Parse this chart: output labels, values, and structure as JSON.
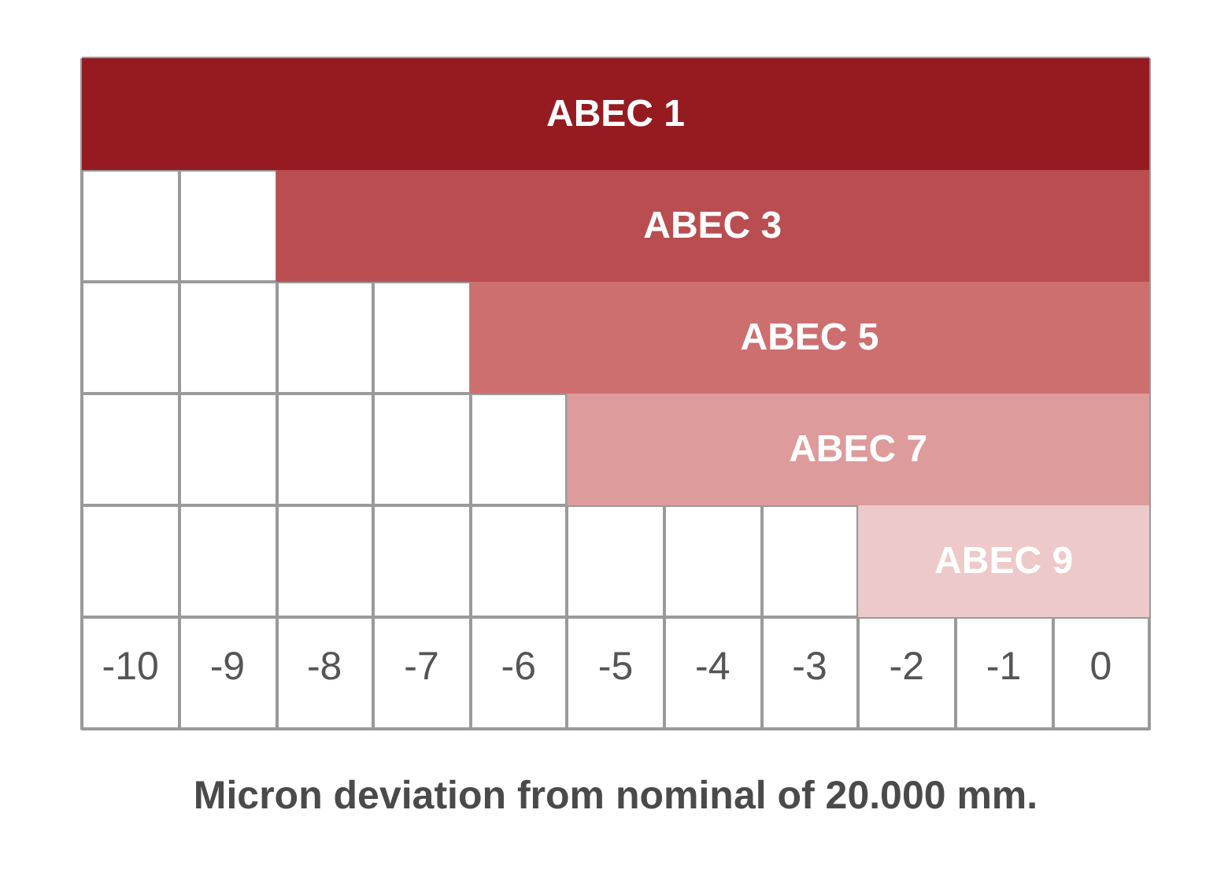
{
  "chart_data": {
    "type": "bar",
    "orientation": "horizontal",
    "categories": [
      "ABEC 1",
      "ABEC 3",
      "ABEC 5",
      "ABEC 7",
      "ABEC 9"
    ],
    "base": [
      -10.5,
      -8.5,
      -6.5,
      -5.5,
      -2.5
    ],
    "values": [
      11,
      9,
      7,
      6,
      3
    ],
    "colors": [
      "#951b20",
      "#b94d50",
      "#cd6e6f",
      "#dd9b9c",
      "#edc9c9"
    ],
    "xlim": [
      -10.5,
      0.5
    ],
    "xticks": [
      {
        "value": -10.5,
        "label": null
      },
      -10,
      {
        "value": -9.5,
        "label": null
      },
      -9,
      {
        "value": -8.5,
        "label": null
      },
      -8,
      {
        "value": -7.5,
        "label": null
      },
      -7,
      {
        "value": -6.5,
        "label": null
      },
      -6,
      {
        "value": -5.5,
        "label": null
      },
      -5,
      {
        "value": -4.5,
        "label": null
      },
      -4,
      {
        "value": -3.5,
        "label": null
      },
      -3,
      {
        "value": -2.5,
        "label": null
      },
      -2,
      {
        "value": -1.5,
        "label": null
      },
      -1,
      {
        "value": -0.5,
        "label": null
      },
      0,
      {
        "value": 0.5,
        "label": null
      }
    ],
    "xlabel": "Micron deviation from nominal of 20.000 mm.",
    "grid": true,
    "tick_labels": "x"
  }
}
